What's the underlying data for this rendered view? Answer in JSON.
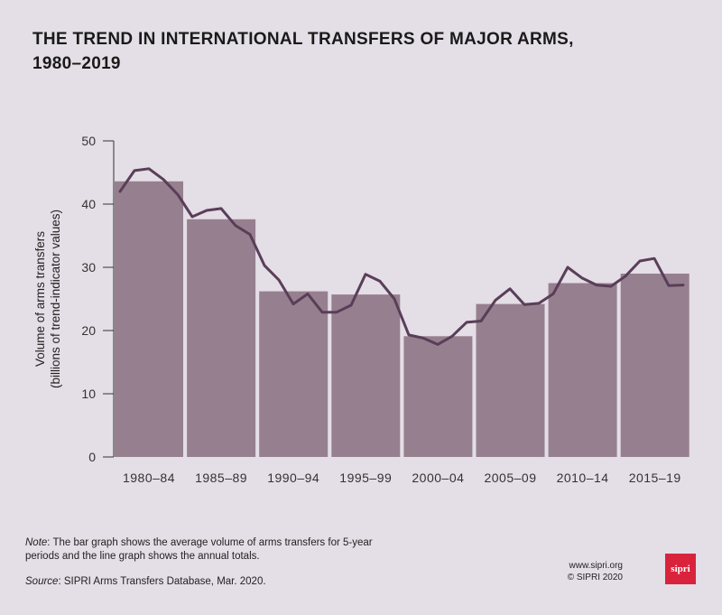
{
  "title": {
    "line1": "THE TREND IN INTERNATIONAL TRANSFERS OF MAJOR ARMS,",
    "line2": "1980–2019"
  },
  "chart_data": {
    "type": "bar",
    "categories": [
      "1980–84",
      "1985–89",
      "1990–94",
      "1995–99",
      "2000–04",
      "2005–09",
      "2010–14",
      "2015–19"
    ],
    "bar_values": [
      43.6,
      37.6,
      26.2,
      25.7,
      19.1,
      24.2,
      27.5,
      29.0
    ],
    "line_series": {
      "x": [
        1980,
        1981,
        1982,
        1983,
        1984,
        1985,
        1986,
        1987,
        1988,
        1989,
        1990,
        1991,
        1992,
        1993,
        1994,
        1995,
        1996,
        1997,
        1998,
        1999,
        2000,
        2001,
        2002,
        2003,
        2004,
        2005,
        2006,
        2007,
        2008,
        2009,
        2010,
        2011,
        2012,
        2013,
        2014,
        2015,
        2016,
        2017,
        2018,
        2019
      ],
      "values": [
        42.0,
        45.3,
        45.6,
        43.9,
        41.5,
        38.0,
        39.0,
        39.3,
        36.6,
        35.2,
        30.3,
        28.0,
        24.2,
        25.8,
        22.9,
        22.9,
        24.0,
        28.9,
        27.8,
        25.0,
        19.3,
        18.8,
        17.8,
        19.1,
        21.3,
        21.5,
        24.8,
        26.6,
        24.1,
        24.3,
        25.8,
        30.0,
        28.3,
        27.2,
        27.0,
        28.6,
        31.0,
        31.4,
        27.1,
        27.2
      ]
    },
    "ylabel_line1": "Volume of arms transfers",
    "ylabel_line2": "(billions of trend-indicator values)",
    "ylim": [
      0,
      50
    ],
    "yticks": [
      "0",
      "10",
      "20",
      "30",
      "40",
      "50"
    ],
    "grid": false,
    "legend": "none"
  },
  "note": {
    "label": "Note",
    "text": ": The bar graph shows the average volume of arms transfers for 5-year periods and the line graph shows the annual totals."
  },
  "source": {
    "label": "Source",
    "text": ": SIPRI Arms Transfers Database, Mar. 2020."
  },
  "credits": {
    "url": "www.sipri.org",
    "copyright": "© SIPRI 2020"
  },
  "logo": {
    "text": "sipri"
  },
  "colors": {
    "background": "#e4dee6",
    "bar": "#96808f",
    "line": "#5a3e58",
    "axis": "#333333",
    "logo": "#d9233d"
  }
}
